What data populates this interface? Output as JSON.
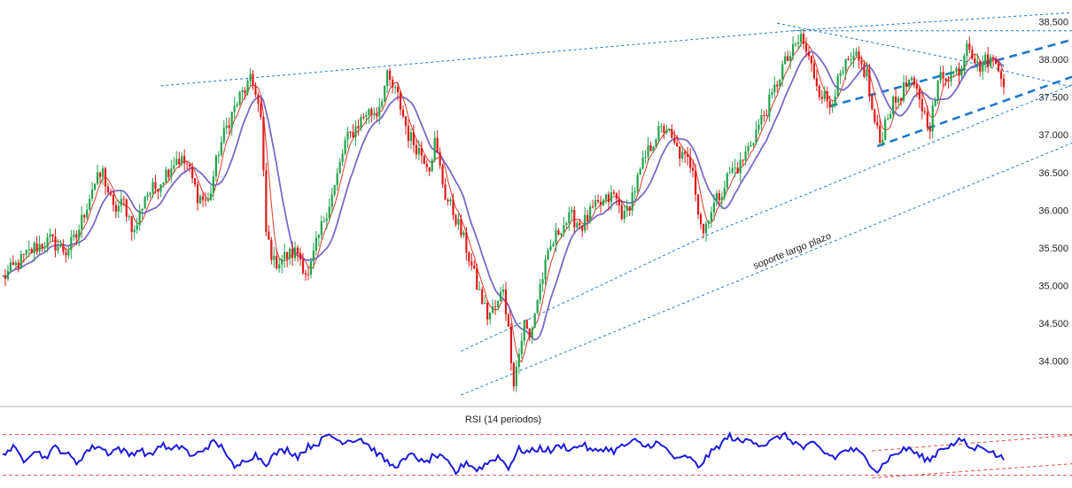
{
  "chart_data": [
    {
      "type": "candlestick",
      "panel": "price",
      "y_ticks": [
        "34.000",
        "34.500",
        "35.000",
        "35.500",
        "36.000",
        "36.500",
        "37.000",
        "37.500",
        "38.000",
        "38.500"
      ],
      "ylim": [
        33.55,
        38.6
      ],
      "grid": false,
      "annotation": "soporte largo plazo",
      "colors": {
        "up": "#22a34a",
        "down": "#e01818",
        "ma_fast": "#e03a2a",
        "ma_slow": "#7b68c8",
        "trendline": "#1f78c8"
      },
      "anchors": [
        [
          0,
          35.1
        ],
        [
          6,
          35.3
        ],
        [
          12,
          35.5
        ],
        [
          18,
          35.6
        ],
        [
          24,
          35.45
        ],
        [
          28,
          35.65
        ],
        [
          34,
          36.3
        ],
        [
          38,
          36.5
        ],
        [
          42,
          36.0
        ],
        [
          46,
          36.1
        ],
        [
          50,
          35.7
        ],
        [
          54,
          36.2
        ],
        [
          58,
          36.3
        ],
        [
          62,
          36.5
        ],
        [
          66,
          36.7
        ],
        [
          70,
          36.6
        ],
        [
          74,
          36.2
        ],
        [
          78,
          36.1
        ],
        [
          82,
          36.8
        ],
        [
          86,
          37.2
        ],
        [
          90,
          37.5
        ],
        [
          94,
          37.7
        ],
        [
          96,
          37.6
        ],
        [
          98,
          37.2
        ],
        [
          100,
          35.7
        ],
        [
          103,
          35.3
        ],
        [
          108,
          35.4
        ],
        [
          112,
          35.45
        ],
        [
          116,
          35.1
        ],
        [
          118,
          35.4
        ],
        [
          122,
          35.9
        ],
        [
          126,
          36.3
        ],
        [
          130,
          36.9
        ],
        [
          134,
          37.1
        ],
        [
          138,
          37.3
        ],
        [
          142,
          37.3
        ],
        [
          146,
          37.75
        ],
        [
          150,
          37.5
        ],
        [
          154,
          37.0
        ],
        [
          158,
          36.8
        ],
        [
          162,
          36.6
        ],
        [
          164,
          36.9
        ],
        [
          168,
          36.2
        ],
        [
          172,
          35.9
        ],
        [
          176,
          35.5
        ],
        [
          180,
          35.0
        ],
        [
          184,
          34.6
        ],
        [
          188,
          34.75
        ],
        [
          190,
          35.0
        ],
        [
          192,
          34.4
        ],
        [
          194,
          33.75
        ],
        [
          196,
          34.1
        ],
        [
          198,
          34.5
        ],
        [
          200,
          34.3
        ],
        [
          204,
          35.0
        ],
        [
          208,
          35.5
        ],
        [
          212,
          35.8
        ],
        [
          216,
          35.9
        ],
        [
          220,
          35.8
        ],
        [
          224,
          36.0
        ],
        [
          228,
          36.1
        ],
        [
          232,
          36.2
        ],
        [
          236,
          35.9
        ],
        [
          240,
          36.3
        ],
        [
          244,
          36.7
        ],
        [
          248,
          37.0
        ],
        [
          252,
          37.1
        ],
        [
          254,
          36.9
        ],
        [
          258,
          36.7
        ],
        [
          262,
          36.6
        ],
        [
          264,
          36.0
        ],
        [
          266,
          35.7
        ],
        [
          268,
          35.95
        ],
        [
          272,
          36.2
        ],
        [
          276,
          36.5
        ],
        [
          280,
          36.6
        ],
        [
          284,
          36.9
        ],
        [
          288,
          37.2
        ],
        [
          292,
          37.5
        ],
        [
          296,
          37.9
        ],
        [
          300,
          38.1
        ],
        [
          303,
          38.3
        ],
        [
          306,
          38.0
        ],
        [
          310,
          37.6
        ],
        [
          314,
          37.4
        ],
        [
          316,
          37.6
        ],
        [
          320,
          37.9
        ],
        [
          324,
          38.0
        ],
        [
          328,
          37.8
        ],
        [
          330,
          37.3
        ],
        [
          333,
          36.9
        ],
        [
          336,
          37.3
        ],
        [
          340,
          37.5
        ],
        [
          344,
          37.7
        ],
        [
          348,
          37.5
        ],
        [
          350,
          37.25
        ],
        [
          352,
          37.15
        ],
        [
          356,
          37.8
        ],
        [
          360,
          37.8
        ],
        [
          364,
          37.9
        ],
        [
          366,
          38.3
        ],
        [
          370,
          37.9
        ],
        [
          374,
          38.0
        ],
        [
          378,
          37.95
        ],
        [
          380,
          37.7
        ]
      ],
      "moving_averages": [
        {
          "label": "ma_fast",
          "period": 5
        },
        {
          "label": "ma_slow",
          "period": 12
        }
      ],
      "trendlines": [
        {
          "points": [
            [
              60,
              37.65
            ],
            [
              300,
              38.38
            ],
            [
              410,
              38.63
            ]
          ],
          "style": "dotted"
        },
        {
          "points": [
            [
              300,
              38.38
            ],
            [
              410,
              38.38
            ]
          ],
          "style": "dotted"
        },
        {
          "points": [
            [
              294,
              38.48
            ],
            [
              362,
              38.0
            ],
            [
              410,
              37.6
            ]
          ],
          "style": "dotted"
        },
        {
          "points": [
            [
              174,
              34.13
            ],
            [
              268,
              35.68
            ],
            [
              410,
              37.72
            ]
          ],
          "style": "dotted"
        },
        {
          "points": [
            [
              174,
              33.55
            ],
            [
              410,
              36.95
            ]
          ],
          "style": "dotted"
        },
        {
          "points": [
            [
              314,
              37.38
            ],
            [
              410,
              38.3
            ]
          ],
          "style": "dashed-bold"
        },
        {
          "points": [
            [
              332,
              36.85
            ],
            [
              410,
              37.82
            ]
          ],
          "style": "dashed-bold"
        }
      ]
    },
    {
      "type": "line",
      "panel": "indicator",
      "title": "RSI (14 periodos)",
      "color": "#1c1cd8",
      "series_anchors": [
        [
          0,
          55
        ],
        [
          4,
          62
        ],
        [
          8,
          45
        ],
        [
          12,
          60
        ],
        [
          16,
          48
        ],
        [
          20,
          63
        ],
        [
          24,
          55
        ],
        [
          28,
          40
        ],
        [
          32,
          58
        ],
        [
          36,
          66
        ],
        [
          40,
          55
        ],
        [
          44,
          62
        ],
        [
          48,
          52
        ],
        [
          52,
          60
        ],
        [
          56,
          50
        ],
        [
          60,
          68
        ],
        [
          64,
          58
        ],
        [
          68,
          66
        ],
        [
          72,
          48
        ],
        [
          76,
          60
        ],
        [
          80,
          70
        ],
        [
          84,
          62
        ],
        [
          88,
          30
        ],
        [
          92,
          45
        ],
        [
          96,
          52
        ],
        [
          100,
          40
        ],
        [
          104,
          55
        ],
        [
          108,
          60
        ],
        [
          112,
          50
        ],
        [
          116,
          64
        ],
        [
          120,
          70
        ],
        [
          124,
          82
        ],
        [
          128,
          72
        ],
        [
          132,
          74
        ],
        [
          136,
          76
        ],
        [
          140,
          62
        ],
        [
          144,
          48
        ],
        [
          148,
          35
        ],
        [
          152,
          42
        ],
        [
          156,
          54
        ],
        [
          160,
          38
        ],
        [
          164,
          52
        ],
        [
          168,
          44
        ],
        [
          172,
          26
        ],
        [
          176,
          42
        ],
        [
          180,
          30
        ],
        [
          184,
          40
        ],
        [
          188,
          50
        ],
        [
          192,
          34
        ],
        [
          196,
          60
        ],
        [
          200,
          56
        ],
        [
          204,
          62
        ],
        [
          208,
          58
        ],
        [
          212,
          66
        ],
        [
          216,
          60
        ],
        [
          220,
          68
        ],
        [
          224,
          56
        ],
        [
          228,
          62
        ],
        [
          232,
          58
        ],
        [
          236,
          66
        ],
        [
          240,
          72
        ],
        [
          244,
          64
        ],
        [
          248,
          70
        ],
        [
          252,
          60
        ],
        [
          256,
          44
        ],
        [
          260,
          50
        ],
        [
          264,
          34
        ],
        [
          268,
          52
        ],
        [
          272,
          66
        ],
        [
          276,
          80
        ],
        [
          280,
          70
        ],
        [
          284,
          76
        ],
        [
          288,
          66
        ],
        [
          292,
          72
        ],
        [
          296,
          82
        ],
        [
          300,
          72
        ],
        [
          304,
          62
        ],
        [
          308,
          68
        ],
        [
          312,
          55
        ],
        [
          316,
          48
        ],
        [
          320,
          60
        ],
        [
          324,
          58
        ],
        [
          328,
          46
        ],
        [
          332,
          28
        ],
        [
          336,
          46
        ],
        [
          340,
          56
        ],
        [
          344,
          62
        ],
        [
          348,
          50
        ],
        [
          352,
          44
        ],
        [
          356,
          62
        ],
        [
          360,
          66
        ],
        [
          364,
          74
        ],
        [
          368,
          60
        ],
        [
          372,
          66
        ],
        [
          376,
          54
        ],
        [
          380,
          46
        ]
      ],
      "levels": [
        {
          "points": [
            [
              0,
              82
            ],
            [
              410,
              82
            ]
          ],
          "style": "dashed",
          "color": "#e05050"
        },
        {
          "points": [
            [
              0,
              22
            ],
            [
              410,
              22
            ]
          ],
          "style": "dashed",
          "color": "#e05050"
        },
        {
          "points": [
            [
              330,
              58
            ],
            [
              410,
              82
            ]
          ],
          "style": "dashed",
          "color": "#e05050"
        },
        {
          "points": [
            [
              330,
              18
            ],
            [
              410,
              40
            ]
          ],
          "style": "dashed",
          "color": "#e05050"
        }
      ],
      "ylim": [
        15,
        88
      ]
    }
  ]
}
